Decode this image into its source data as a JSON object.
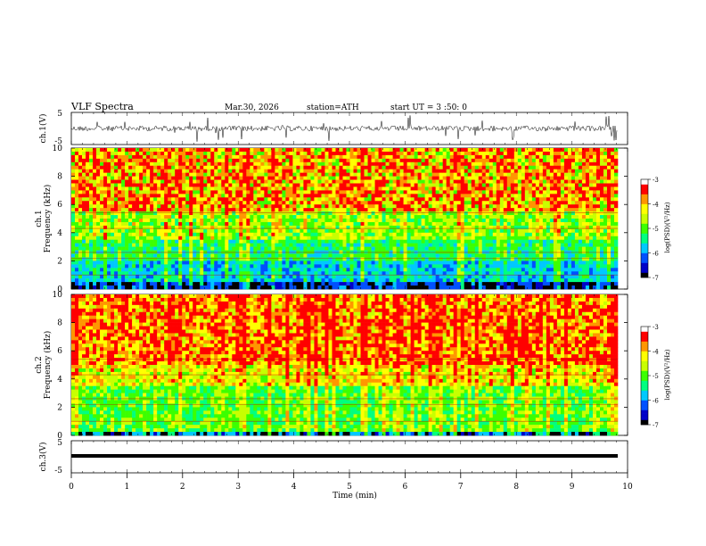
{
  "header": {
    "title": "VLF  Spectra",
    "date": "Mar.30, 2026",
    "station": "station=ATH",
    "start": "start  UT  =    3  :50: 0"
  },
  "chart_data": [
    {
      "type": "line",
      "panel": "ch1-waveform",
      "ylabel": "ch.1(V)",
      "ytick_labels": [
        "5",
        "-5"
      ],
      "ylim": [
        -5,
        5
      ],
      "xlim": [
        0,
        10
      ]
    },
    {
      "type": "heatmap",
      "panel": "ch1-spectrogram",
      "ylabel_line1": "ch.1",
      "ylabel_line2": "Frequency  (kHz)",
      "ytick_labels": [
        "0",
        "2",
        "4",
        "6",
        "8",
        "10"
      ],
      "ylim": [
        0,
        10
      ],
      "xlim": [
        0,
        10
      ],
      "colorbar": {
        "label": "log(PSD)(V²/Hz)",
        "tick_labels": [
          "-3",
          "-4",
          "-5",
          "-6",
          "-7"
        ],
        "range": [
          -7,
          -3
        ]
      }
    },
    {
      "type": "heatmap",
      "panel": "ch2-spectrogram",
      "ylabel_line1": "ch.2",
      "ylabel_line2": "Frequency  (kHz)",
      "ytick_labels": [
        "0",
        "2",
        "4",
        "6",
        "8",
        "10"
      ],
      "ylim": [
        0,
        10
      ],
      "xlim": [
        0,
        10
      ],
      "colorbar": {
        "label": "log(PSD)(V²/Hz)",
        "tick_labels": [
          "-3",
          "-4",
          "-5",
          "-6",
          "-7"
        ],
        "range": [
          -7,
          -3
        ]
      }
    },
    {
      "type": "line",
      "panel": "ch3-waveform",
      "ylabel": "ch.3(V)",
      "ytick_labels": [
        "5",
        "-5"
      ],
      "ylim": [
        -5,
        5
      ],
      "xlim": [
        0,
        10
      ],
      "xlabel": "Time  (min)",
      "xtick_labels": [
        "0",
        "1",
        "2",
        "3",
        "4",
        "5",
        "6",
        "7",
        "8",
        "9",
        "10"
      ]
    }
  ],
  "colors": {
    "spectrum": [
      "#000000",
      "#0000c8",
      "#0050ff",
      "#00c8ff",
      "#00ff80",
      "#3cff00",
      "#c8ff00",
      "#ffff00",
      "#ff9600",
      "#ff0000",
      "#ffffff"
    ]
  }
}
